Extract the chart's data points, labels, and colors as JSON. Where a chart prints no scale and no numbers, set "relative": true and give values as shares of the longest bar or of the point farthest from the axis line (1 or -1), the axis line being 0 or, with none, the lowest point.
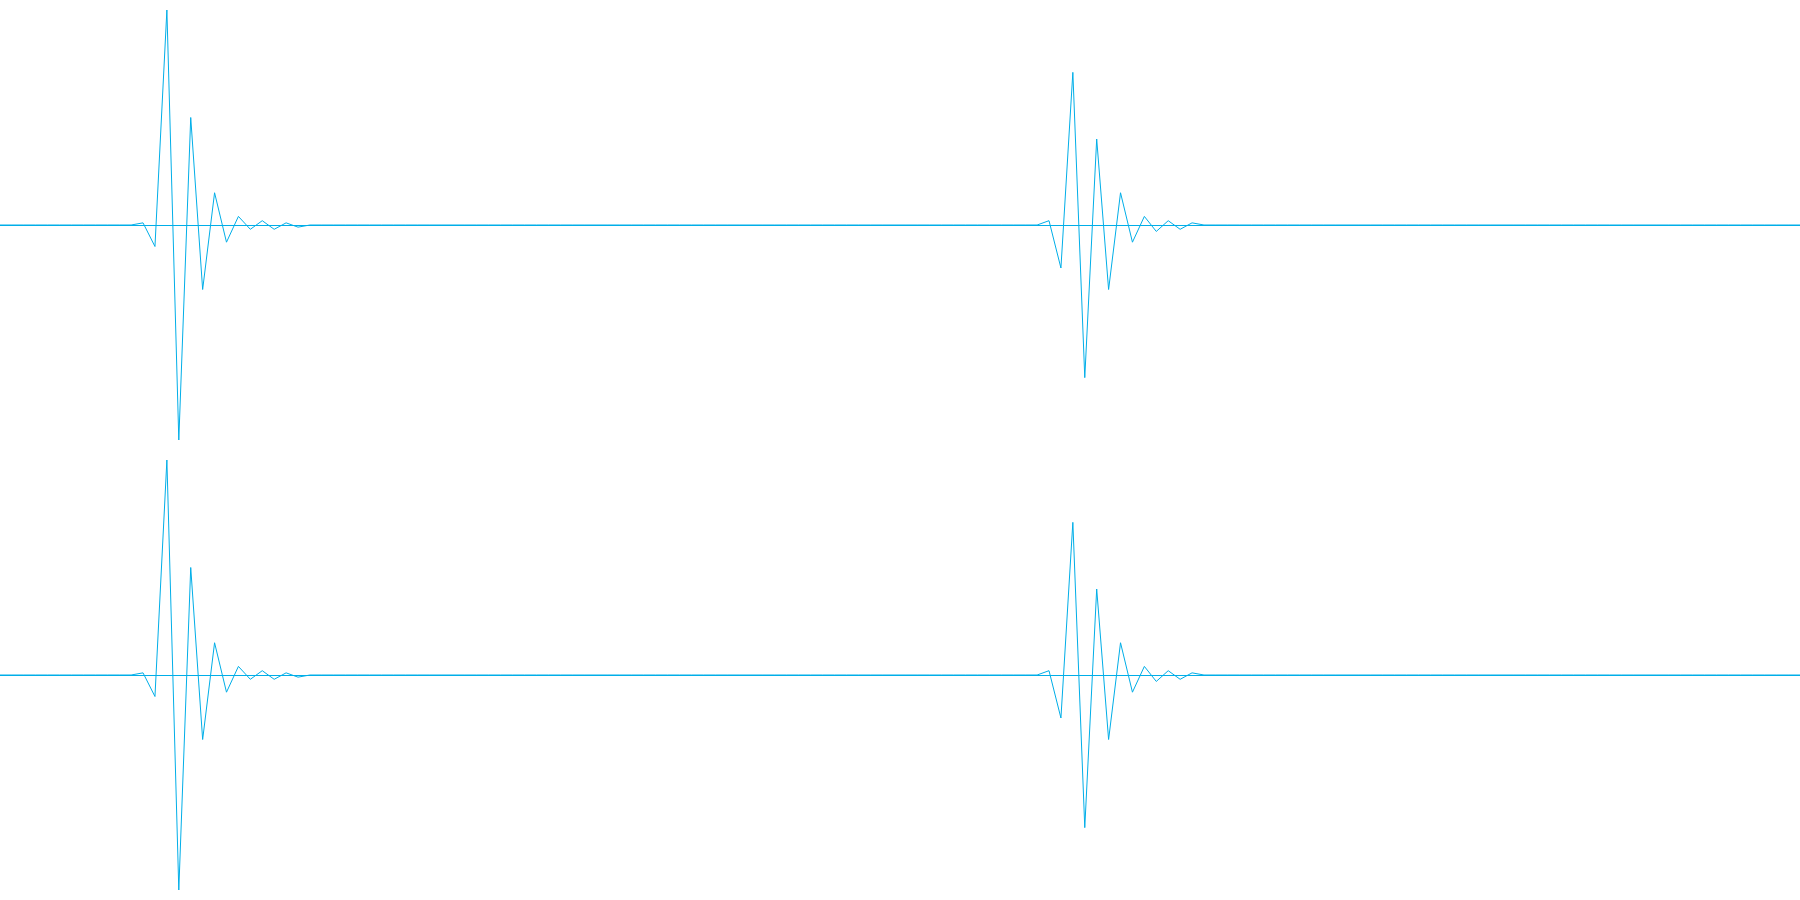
{
  "chart_data": [
    {
      "type": "line",
      "relative": true,
      "ref_lines": [
        {
          "axis": "y",
          "value": 0,
          "color": "#00aee8"
        }
      ],
      "categories": [
        null,
        null,
        null,
        null,
        null,
        null,
        null,
        null,
        null,
        null,
        null,
        null,
        null,
        null,
        null,
        null,
        null,
        null,
        null,
        null,
        null,
        null,
        null,
        null,
        null,
        null,
        null,
        null,
        null,
        null,
        null,
        null,
        null,
        null,
        null,
        null,
        null,
        null,
        null,
        null,
        null,
        null,
        null,
        null,
        null,
        null,
        null,
        null,
        null,
        null,
        null,
        null,
        null,
        null,
        null,
        null,
        null,
        null,
        null,
        null,
        null,
        null,
        null,
        null,
        null,
        null,
        null,
        null,
        null,
        null,
        null,
        null,
        null,
        null,
        null,
        null,
        null,
        null,
        null,
        null,
        null,
        null,
        null,
        null,
        null,
        null,
        null,
        null,
        null,
        null,
        null,
        null,
        null,
        null,
        null,
        null,
        null,
        null,
        null,
        null,
        null,
        null,
        null,
        null,
        null,
        null,
        null,
        null,
        null,
        null,
        null,
        null,
        null,
        null,
        null,
        null,
        null,
        null,
        null,
        null,
        null,
        null,
        null,
        null,
        null,
        null,
        null,
        null,
        null,
        null,
        null,
        null,
        null,
        null,
        null,
        null,
        null,
        null,
        null,
        null,
        null,
        null,
        null,
        null,
        null,
        null,
        null,
        null,
        null,
        null,
        null,
        null
      ],
      "series": [
        {
          "color": "#00aee8",
          "values": [
            0,
            0,
            0,
            0,
            0,
            0,
            0,
            0,
            0,
            0,
            0,
            0,
            0.01,
            -0.1,
            1,
            -1,
            0.5,
            -0.3,
            0.15,
            -0.08,
            0.04,
            -0.02,
            0.02,
            -0.02,
            0.01,
            -0.01,
            0,
            0,
            0,
            0,
            0,
            0,
            0,
            0,
            0,
            0,
            0,
            0,
            0,
            0,
            0,
            0,
            0,
            0,
            0,
            0,
            0,
            0,
            0,
            0,
            0,
            0,
            0,
            0,
            0,
            0,
            0,
            0,
            0,
            0,
            0,
            0,
            0,
            0,
            0,
            0,
            0,
            0,
            0,
            0,
            0,
            0,
            0,
            0,
            0,
            0,
            0,
            0,
            0,
            0,
            0,
            0,
            0,
            0,
            0,
            0,
            0,
            0,
            0.02,
            -0.2,
            0.71,
            -0.71,
            0.4,
            -0.3,
            0.15,
            -0.08,
            0.04,
            -0.03,
            0.02,
            -0.02,
            0.01,
            0,
            0,
            0,
            0,
            0,
            0,
            0,
            0,
            0,
            0,
            0,
            0,
            0,
            0,
            0,
            0,
            0,
            0,
            0,
            0,
            0,
            0,
            0,
            0,
            0,
            0,
            0,
            0,
            0,
            0,
            0,
            0,
            0,
            0,
            0,
            0,
            0,
            0,
            0,
            0,
            0,
            0,
            0,
            0,
            0,
            0,
            0,
            0,
            0,
            0,
            0
          ]
        }
      ]
    },
    {
      "type": "line",
      "relative": true,
      "ref_lines": [
        {
          "axis": "y",
          "value": 0,
          "color": "#00aee8"
        }
      ],
      "categories": [
        null,
        null,
        null,
        null,
        null,
        null,
        null,
        null,
        null,
        null,
        null,
        null,
        null,
        null,
        null,
        null,
        null,
        null,
        null,
        null,
        null,
        null,
        null,
        null,
        null,
        null,
        null,
        null,
        null,
        null,
        null,
        null,
        null,
        null,
        null,
        null,
        null,
        null,
        null,
        null,
        null,
        null,
        null,
        null,
        null,
        null,
        null,
        null,
        null,
        null,
        null,
        null,
        null,
        null,
        null,
        null,
        null,
        null,
        null,
        null,
        null,
        null,
        null,
        null,
        null,
        null,
        null,
        null,
        null,
        null,
        null,
        null,
        null,
        null,
        null,
        null,
        null,
        null,
        null,
        null,
        null,
        null,
        null,
        null,
        null,
        null,
        null,
        null,
        null,
        null,
        null,
        null,
        null,
        null,
        null,
        null,
        null,
        null,
        null,
        null,
        null,
        null,
        null,
        null,
        null,
        null,
        null,
        null,
        null,
        null,
        null,
        null,
        null,
        null,
        null,
        null,
        null,
        null,
        null,
        null,
        null,
        null,
        null,
        null,
        null,
        null,
        null,
        null,
        null,
        null,
        null,
        null,
        null,
        null,
        null,
        null,
        null,
        null,
        null,
        null,
        null,
        null,
        null,
        null,
        null,
        null,
        null,
        null,
        null,
        null,
        null,
        null
      ],
      "series": [
        {
          "color": "#00aee8",
          "values": [
            0,
            0,
            0,
            0,
            0,
            0,
            0,
            0,
            0,
            0,
            0,
            0,
            0.01,
            -0.1,
            1,
            -1,
            0.5,
            -0.3,
            0.15,
            -0.08,
            0.04,
            -0.02,
            0.02,
            -0.02,
            0.01,
            -0.01,
            0,
            0,
            0,
            0,
            0,
            0,
            0,
            0,
            0,
            0,
            0,
            0,
            0,
            0,
            0,
            0,
            0,
            0,
            0,
            0,
            0,
            0,
            0,
            0,
            0,
            0,
            0,
            0,
            0,
            0,
            0,
            0,
            0,
            0,
            0,
            0,
            0,
            0,
            0,
            0,
            0,
            0,
            0,
            0,
            0,
            0,
            0,
            0,
            0,
            0,
            0,
            0,
            0,
            0,
            0,
            0,
            0,
            0,
            0,
            0,
            0,
            0,
            0.02,
            -0.2,
            0.71,
            -0.71,
            0.4,
            -0.3,
            0.15,
            -0.08,
            0.04,
            -0.03,
            0.02,
            -0.02,
            0.01,
            0,
            0,
            0,
            0,
            0,
            0,
            0,
            0,
            0,
            0,
            0,
            0,
            0,
            0,
            0,
            0,
            0,
            0,
            0,
            0,
            0,
            0,
            0,
            0,
            0,
            0,
            0,
            0,
            0,
            0,
            0,
            0,
            0,
            0,
            0,
            0,
            0,
            0,
            0,
            0,
            0,
            0,
            0,
            0,
            0,
            0,
            0,
            0,
            0,
            0,
            0
          ]
        }
      ]
    }
  ]
}
